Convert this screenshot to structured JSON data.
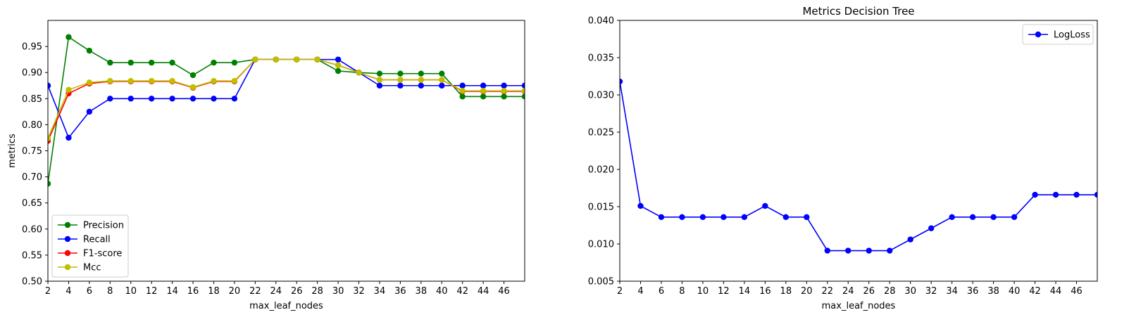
{
  "chart_data": [
    {
      "type": "line",
      "title": "",
      "xlabel": "max_leaf_nodes",
      "ylabel": "metrics",
      "xlim": [
        2,
        48
      ],
      "ylim": [
        0.5,
        1.0
      ],
      "xticks": [
        2,
        4,
        6,
        8,
        10,
        12,
        14,
        16,
        18,
        20,
        22,
        24,
        26,
        28,
        30,
        32,
        34,
        36,
        38,
        40,
        42,
        44,
        46
      ],
      "yticks": [
        0.5,
        0.55,
        0.6,
        0.65,
        0.7,
        0.75,
        0.8,
        0.85,
        0.9,
        0.95
      ],
      "ytick_labels": [
        "0.50",
        "0.55",
        "0.60",
        "0.65",
        "0.70",
        "0.75",
        "0.80",
        "0.85",
        "0.90",
        "0.95"
      ],
      "grid": false,
      "legend_position": "lower-left",
      "x": [
        2,
        4,
        6,
        8,
        10,
        12,
        14,
        16,
        18,
        20,
        22,
        24,
        26,
        28,
        30,
        32,
        34,
        36,
        38,
        40,
        42,
        44,
        46,
        48
      ],
      "series": [
        {
          "name": "Precision",
          "color": "#008000",
          "values": [
            0.687,
            0.968,
            0.942,
            0.919,
            0.919,
            0.919,
            0.919,
            0.895,
            0.919,
            0.919,
            0.925,
            0.925,
            0.925,
            0.925,
            0.903,
            0.9,
            0.898,
            0.898,
            0.898,
            0.898,
            0.854,
            0.854,
            0.854,
            0.854
          ]
        },
        {
          "name": "Recall",
          "color": "#0000ff",
          "values": [
            0.875,
            0.775,
            0.825,
            0.85,
            0.85,
            0.85,
            0.85,
            0.85,
            0.85,
            0.85,
            0.925,
            0.925,
            0.925,
            0.925,
            0.925,
            0.9,
            0.875,
            0.875,
            0.875,
            0.875,
            0.875,
            0.875,
            0.875,
            0.875
          ]
        },
        {
          "name": "F1-score",
          "color": "#ff0000",
          "values": [
            0.769,
            0.86,
            0.879,
            0.883,
            0.883,
            0.883,
            0.883,
            0.871,
            0.883,
            0.883,
            0.925,
            0.925,
            0.925,
            0.925,
            0.914,
            0.9,
            0.886,
            0.886,
            0.886,
            0.886,
            0.864,
            0.864,
            0.864,
            0.864
          ]
        },
        {
          "name": "Mcc",
          "color": "#bfbf00",
          "values": [
            0.774,
            0.867,
            0.881,
            0.884,
            0.884,
            0.884,
            0.884,
            0.872,
            0.884,
            0.884,
            0.925,
            0.925,
            0.925,
            0.925,
            0.914,
            0.9,
            0.886,
            0.886,
            0.886,
            0.886,
            0.865,
            0.865,
            0.865,
            0.865
          ]
        }
      ]
    },
    {
      "type": "line",
      "title": "Metrics Decision Tree",
      "xlabel": "max_leaf_nodes",
      "ylabel": "",
      "xlim": [
        2,
        48
      ],
      "ylim": [
        0.005,
        0.04
      ],
      "xticks": [
        2,
        4,
        6,
        8,
        10,
        12,
        14,
        16,
        18,
        20,
        22,
        24,
        26,
        28,
        30,
        32,
        34,
        36,
        38,
        40,
        42,
        44,
        46
      ],
      "yticks": [
        0.005,
        0.01,
        0.015,
        0.02,
        0.025,
        0.03,
        0.035,
        0.04
      ],
      "ytick_labels": [
        "0.005",
        "0.010",
        "0.015",
        "0.020",
        "0.025",
        "0.030",
        "0.035",
        "0.040"
      ],
      "grid": false,
      "legend_position": "upper-right",
      "x": [
        2,
        4,
        6,
        8,
        10,
        12,
        14,
        16,
        18,
        20,
        22,
        24,
        26,
        28,
        30,
        32,
        34,
        36,
        38,
        40,
        42,
        44,
        46,
        48
      ],
      "series": [
        {
          "name": "LogLoss",
          "color": "#0000ff",
          "values": [
            0.0318,
            0.0151,
            0.0136,
            0.0136,
            0.0136,
            0.0136,
            0.0136,
            0.0151,
            0.0136,
            0.0136,
            0.0091,
            0.0091,
            0.0091,
            0.0091,
            0.0106,
            0.0121,
            0.0136,
            0.0136,
            0.0136,
            0.0136,
            0.0166,
            0.0166,
            0.0166,
            0.0166
          ]
        }
      ]
    }
  ]
}
